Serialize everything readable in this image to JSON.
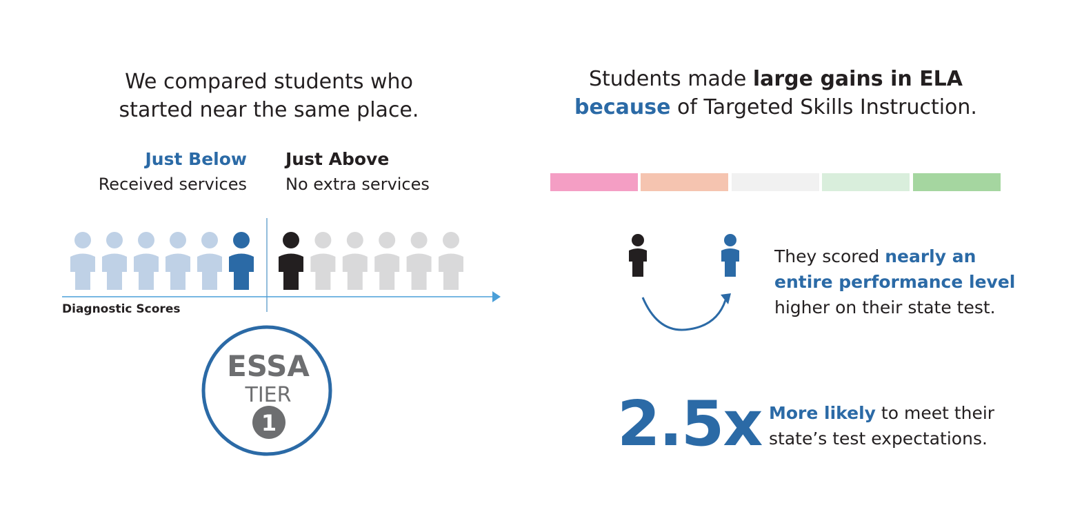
{
  "left": {
    "heading_line1": "We compared students who",
    "heading_line2": "started near the same place.",
    "below_title": "Just Below",
    "below_sub": "Received services",
    "above_title": "Just Above",
    "above_sub": "No extra services",
    "axis_label": "Diagnostic Scores",
    "students_below": 6,
    "students_above": 6,
    "badge": {
      "line1": "ESSA",
      "line2": "TIER",
      "number": "1"
    }
  },
  "right": {
    "heading_pre": "Students made ",
    "heading_bold": "large gains in ELA",
    "heading_because": "because",
    "heading_post": " of Targeted Skills Instruction.",
    "scale_colors": [
      "#f49ec4",
      "#f5c4b0",
      "#f1f1f1",
      "#d9eedc",
      "#a5d6a0"
    ],
    "scored_pre": "They scored ",
    "scored_bold1": "nearly an",
    "scored_bold2": "entire performance level",
    "scored_post": "higher on their state test.",
    "stat": "2.5x",
    "likely_bold": "More likely",
    "likely_rest": " to meet their",
    "likely_line2": "state’s test expectations."
  },
  "colors": {
    "accent_blue": "#2b6aa6",
    "light_blue": "#bfd1e6",
    "light_gray": "#d9d9da",
    "dark": "#231f20",
    "axis": "#4a9fd8"
  }
}
